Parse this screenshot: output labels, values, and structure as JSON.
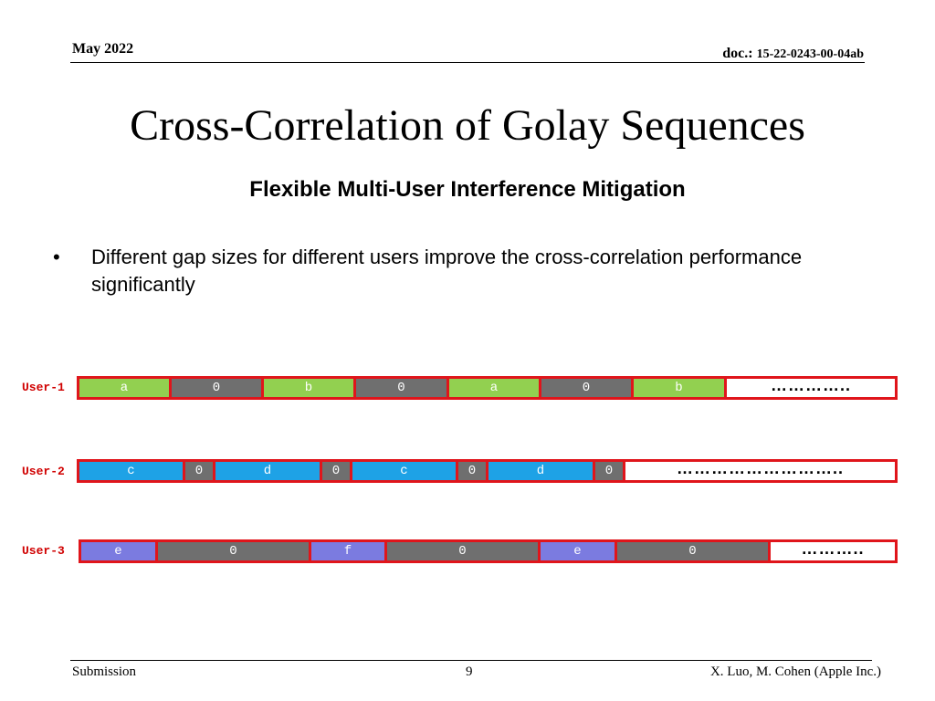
{
  "header": {
    "date": "May 2022",
    "doc_label": "doc.:",
    "doc_number": "15-22-0243-00-04ab"
  },
  "slide": {
    "title": "Cross-Correlation of Golay Sequences",
    "subtitle": "Flexible Multi-User Interference Mitigation",
    "bullet_marker": "•",
    "bullet": "Different gap sizes for different users improve the cross-correlation performance significantly"
  },
  "colors": {
    "green": "#92d050",
    "gray": "#6f6f6f",
    "blue": "#1ea2e6",
    "purple": "#7b7be0",
    "border": "#e0151b",
    "label": "#d00000"
  },
  "users": [
    {
      "label": "User-1",
      "segments": [
        {
          "text": "a",
          "color": "green"
        },
        {
          "text": "0",
          "color": "gray"
        },
        {
          "text": "b",
          "color": "green"
        },
        {
          "text": "0",
          "color": "gray"
        },
        {
          "text": "a",
          "color": "green"
        },
        {
          "text": "0",
          "color": "gray"
        },
        {
          "text": "b",
          "color": "green"
        },
        {
          "text": "…………..",
          "color": "dots"
        }
      ]
    },
    {
      "label": "User-2",
      "segments": [
        {
          "text": "c",
          "color": "blue"
        },
        {
          "text": "0",
          "color": "gray"
        },
        {
          "text": "d",
          "color": "blue"
        },
        {
          "text": "0",
          "color": "gray"
        },
        {
          "text": "c",
          "color": "blue"
        },
        {
          "text": "0",
          "color": "gray"
        },
        {
          "text": "d",
          "color": "blue"
        },
        {
          "text": "0",
          "color": "gray"
        },
        {
          "text": "………………………..",
          "color": "dots"
        }
      ]
    },
    {
      "label": "User-3",
      "segments": [
        {
          "text": "e",
          "color": "purple"
        },
        {
          "text": "0",
          "color": "gray"
        },
        {
          "text": "f",
          "color": "purple"
        },
        {
          "text": "0",
          "color": "gray"
        },
        {
          "text": "e",
          "color": "purple"
        },
        {
          "text": "0",
          "color": "gray"
        },
        {
          "text": "………..",
          "color": "dots"
        }
      ]
    }
  ],
  "footer": {
    "left": "Submission",
    "page": "9",
    "right": "X. Luo, M. Cohen (Apple Inc.)"
  }
}
